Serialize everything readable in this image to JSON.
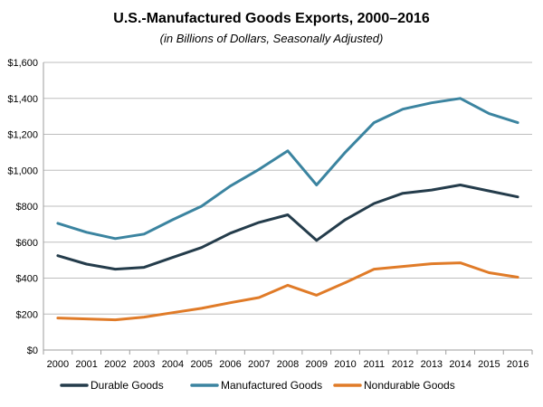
{
  "chart_data": {
    "type": "line",
    "title": "U.S.-Manufactured Goods Exports, 2000–2016",
    "subtitle": "(in Billions of Dollars, Seasonally Adjusted)",
    "xlabel": "",
    "ylabel": "",
    "categories": [
      "2000",
      "2001",
      "2002",
      "2003",
      "2004",
      "2005",
      "2006",
      "2007",
      "2008",
      "2009",
      "2010",
      "2011",
      "2012",
      "2013",
      "2014",
      "2015",
      "2016"
    ],
    "ylim": [
      0,
      1600
    ],
    "yticks": [
      0,
      200,
      400,
      600,
      800,
      1000,
      1200,
      1400,
      1600
    ],
    "ytick_labels": [
      "$0",
      "$200",
      "$400",
      "$600",
      "$800",
      "$1,000",
      "$1,200",
      "$1,400",
      "$1,600"
    ],
    "grid": true,
    "legend_position": "bottom",
    "series": [
      {
        "name": "Durable Goods",
        "color": "#243c4b",
        "values": [
          525,
          478,
          450,
          460,
          515,
          570,
          650,
          710,
          752,
          610,
          725,
          815,
          872,
          890,
          918,
          885,
          852
        ]
      },
      {
        "name": "Manufactured Goods",
        "color": "#3b84a0",
        "values": [
          705,
          655,
          620,
          645,
          725,
          800,
          912,
          1005,
          1108,
          918,
          1100,
          1265,
          1340,
          1375,
          1400,
          1315,
          1265
        ]
      },
      {
        "name": "Nondurable Goods",
        "color": "#e07b28",
        "values": [
          178,
          173,
          168,
          183,
          208,
          232,
          263,
          292,
          360,
          305,
          375,
          450,
          465,
          480,
          485,
          430,
          405
        ]
      }
    ]
  }
}
